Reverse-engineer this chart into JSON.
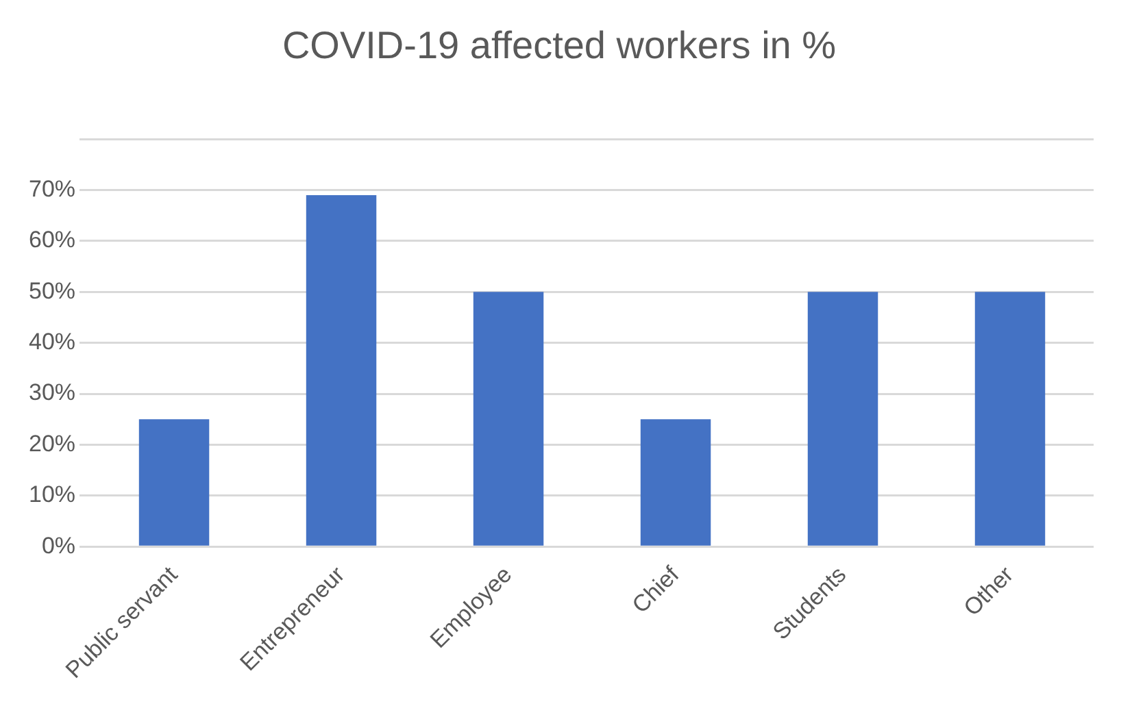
{
  "chart_data": {
    "type": "bar",
    "title": "COVID-19 affected workers in %",
    "categories": [
      "Public servant",
      "Entrepreneur",
      "Employee",
      "Chief",
      "Students",
      "Other"
    ],
    "values": [
      25,
      69,
      50,
      25,
      50,
      50
    ],
    "color": "#4472c4",
    "ylim": [
      0,
      80
    ],
    "yticks": [
      {
        "value": 0,
        "label": "0%"
      },
      {
        "value": 10,
        "label": "10%"
      },
      {
        "value": 20,
        "label": "20%"
      },
      {
        "value": 30,
        "label": "30%"
      },
      {
        "value": 40,
        "label": "40%"
      },
      {
        "value": 50,
        "label": "50%"
      },
      {
        "value": 60,
        "label": "60%"
      },
      {
        "value": 70,
        "label": "70%"
      },
      {
        "value": 80,
        "label": null
      }
    ],
    "grid": "y",
    "legend": false
  }
}
